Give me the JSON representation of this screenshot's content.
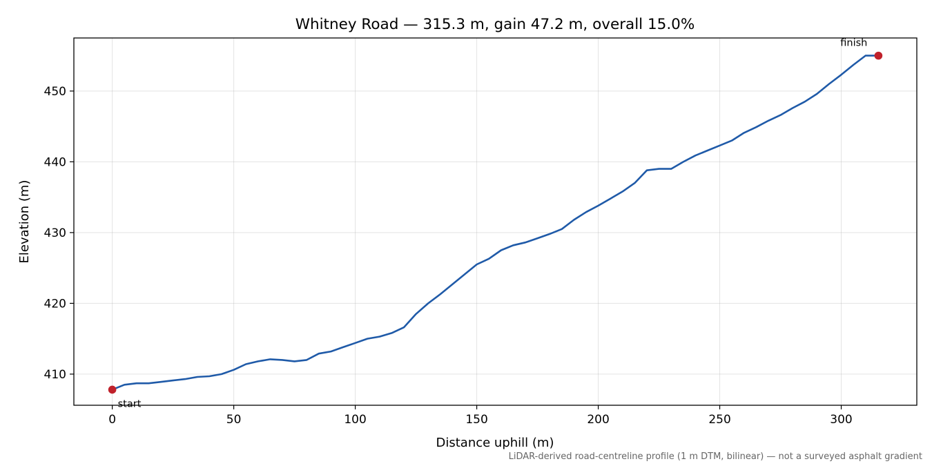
{
  "chart_data": {
    "type": "line",
    "title": "Whitney Road — 315.3 m, gain 47.2 m, overall 15.0%",
    "xlabel": "Distance uphill (m)",
    "ylabel": "Elevation (m)",
    "xlim": [
      -15.8,
      331.1
    ],
    "ylim": [
      405.6,
      457.5
    ],
    "xticks": [
      0,
      50,
      100,
      150,
      200,
      250,
      300
    ],
    "yticks": [
      410,
      420,
      430,
      440,
      450
    ],
    "grid": true,
    "footnote": "LiDAR-derived road-centreline profile (1 m DTM, bilinear) — not a surveyed asphalt gradient",
    "series": [
      {
        "color": "#1f5aa8",
        "x": [
          0,
          5,
          10,
          15,
          20,
          25,
          30,
          35,
          40,
          45,
          50,
          55,
          60,
          65,
          70,
          75,
          80,
          85,
          90,
          95,
          100,
          105,
          110,
          115,
          120,
          125,
          130,
          135,
          140,
          145,
          150,
          155,
          160,
          165,
          170,
          175,
          180,
          185,
          190,
          195,
          200,
          205,
          210,
          215,
          220,
          225,
          230,
          235,
          240,
          245,
          250,
          255,
          260,
          265,
          270,
          275,
          280,
          285,
          290,
          295,
          300,
          305,
          310,
          315.3
        ],
        "y": [
          407.8,
          408.5,
          408.7,
          408.7,
          408.9,
          409.1,
          409.3,
          409.6,
          409.7,
          410.0,
          410.6,
          411.4,
          411.8,
          412.1,
          412.0,
          411.8,
          412.0,
          412.9,
          413.2,
          413.8,
          414.4,
          415.0,
          415.3,
          415.8,
          416.6,
          418.5,
          420.0,
          421.3,
          422.7,
          424.1,
          425.5,
          426.3,
          427.5,
          428.2,
          428.6,
          429.2,
          429.8,
          430.5,
          431.8,
          432.9,
          433.8,
          434.8,
          435.8,
          437.0,
          438.8,
          439.0,
          439.0,
          440.0,
          440.9,
          441.6,
          442.3,
          443.0,
          444.1,
          444.9,
          445.8,
          446.6,
          447.6,
          448.5,
          449.6,
          451.0,
          452.3,
          453.7,
          455.0,
          455.0
        ]
      }
    ],
    "annotations": [
      {
        "label": "start",
        "x": 0,
        "y": 407.8
      },
      {
        "label": "finish",
        "x": 315.3,
        "y": 455.0
      }
    ],
    "marker_color": "#c0212b"
  }
}
